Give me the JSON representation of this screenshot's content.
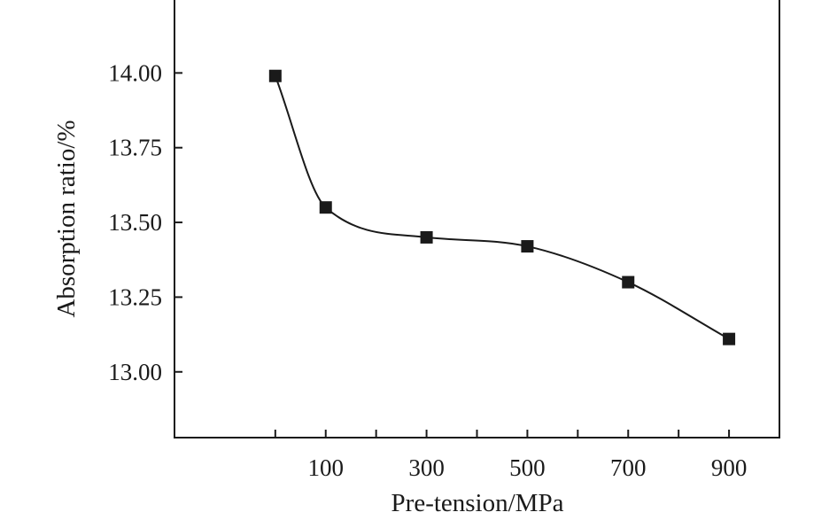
{
  "chart_data": {
    "type": "line",
    "title": "",
    "xlabel": "Pre-tension/MPa",
    "ylabel": "Absorption ratio/%",
    "xlim": [
      -200,
      1000
    ],
    "ylim": [
      12.78,
      14.25
    ],
    "x_tick_values": [
      0,
      100,
      200,
      300,
      400,
      500,
      600,
      700,
      800,
      900
    ],
    "x_tick_labels": [
      {
        "value": 100,
        "label": "100"
      },
      {
        "value": 300,
        "label": "300"
      },
      {
        "value": 500,
        "label": "500"
      },
      {
        "value": 700,
        "label": "700"
      },
      {
        "value": 900,
        "label": "900"
      }
    ],
    "y_ticks": [
      {
        "value": 13.0,
        "label": "13.00"
      },
      {
        "value": 13.25,
        "label": "13.25"
      },
      {
        "value": 13.5,
        "label": "13.50"
      },
      {
        "value": 13.75,
        "label": "13.75"
      },
      {
        "value": 14.0,
        "label": "14.00"
      }
    ],
    "grid": false,
    "legend": "none",
    "series": [
      {
        "marker": "square",
        "color": "#1a1a1a",
        "points": [
          {
            "x": 0,
            "y": 13.99
          },
          {
            "x": 100,
            "y": 13.55
          },
          {
            "x": 300,
            "y": 13.45
          },
          {
            "x": 500,
            "y": 13.42
          },
          {
            "x": 700,
            "y": 13.3
          },
          {
            "x": 900,
            "y": 13.11
          }
        ]
      }
    ]
  }
}
